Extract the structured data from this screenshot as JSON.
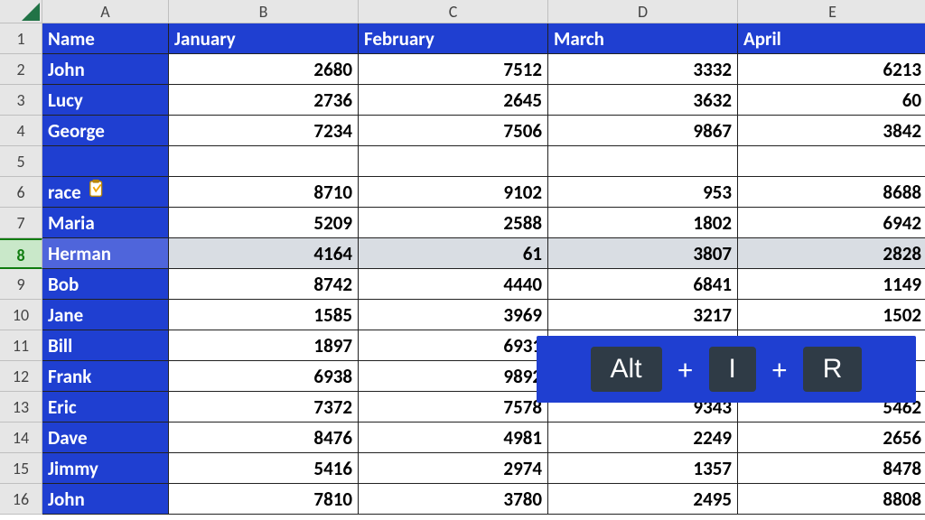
{
  "grid": {
    "col_letters": [
      "A",
      "B",
      "C",
      "D",
      "E"
    ],
    "row_numbers": [
      1,
      2,
      3,
      4,
      5,
      6,
      7,
      8,
      9,
      10,
      11,
      12,
      13,
      14,
      15,
      16
    ],
    "selected_row": 8,
    "colors": {
      "header_bg": "#1f3fd1",
      "header_text": "#ffffff",
      "cell_text": "#000000",
      "grid_border": "#212121",
      "col_row_hdr_bg": "#e6e6e6",
      "selected_row_bg": "#d9dde3",
      "selected_rowhdr_bg": "#c9e8c9",
      "selected_rowhdr_border": "#0f7b0f",
      "corner_triangle": "#217346"
    },
    "font": {
      "family": "Calibri",
      "data_size_pt": 16,
      "header_size_pt": 16,
      "weight": "bold"
    },
    "columns": [
      "Name",
      "January",
      "February",
      "March",
      "April"
    ],
    "rows": [
      {
        "name": "John",
        "v": [
          2680,
          7512,
          3332,
          6213
        ]
      },
      {
        "name": "Lucy",
        "v": [
          2736,
          2645,
          3632,
          60
        ]
      },
      {
        "name": "George",
        "v": [
          7234,
          7506,
          9867,
          3842
        ]
      },
      {
        "name": "",
        "v": [
          null,
          null,
          null,
          null
        ],
        "blank": true
      },
      {
        "name": "race",
        "v": [
          8710,
          9102,
          953,
          8688
        ],
        "paste_icon": true
      },
      {
        "name": "Maria",
        "v": [
          5209,
          2588,
          1802,
          6942
        ]
      },
      {
        "name": "Herman",
        "v": [
          4164,
          61,
          3807,
          2828
        ]
      },
      {
        "name": "Bob",
        "v": [
          8742,
          4440,
          6841,
          1149
        ]
      },
      {
        "name": "Jane",
        "v": [
          1585,
          3969,
          3217,
          1502
        ]
      },
      {
        "name": "Bill",
        "v": [
          1897,
          6931,
          null,
          null
        ]
      },
      {
        "name": "Frank",
        "v": [
          6938,
          9892,
          null,
          null
        ]
      },
      {
        "name": "Eric",
        "v": [
          7372,
          7578,
          9343,
          5462
        ]
      },
      {
        "name": "Dave",
        "v": [
          8476,
          4981,
          2249,
          2656
        ]
      },
      {
        "name": "Jimmy",
        "v": [
          5416,
          2974,
          1357,
          8478
        ]
      },
      {
        "name": "John",
        "v": [
          7810,
          3780,
          2495,
          8808
        ]
      }
    ]
  },
  "shortcut": {
    "bg": "#1f3fd1",
    "key_bg": "#2f3b46",
    "key_fg": "#ffffff",
    "keys": [
      "Alt",
      "I",
      "R"
    ],
    "separator": "+"
  },
  "icons": {
    "paste_options": "paste-options-icon"
  }
}
